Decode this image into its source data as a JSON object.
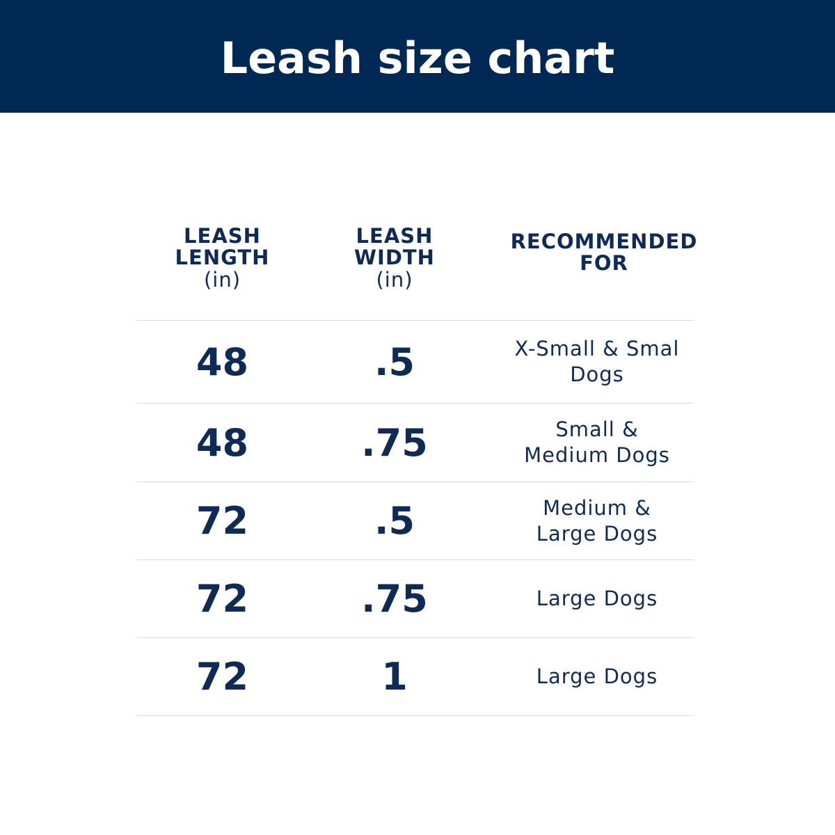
{
  "header": {
    "title": "Leash size chart"
  },
  "colors": {
    "header_bg": "#002855",
    "text": "#0e2a55",
    "divider": "#d4dbe3"
  },
  "chart_data": {
    "type": "table",
    "columns": [
      {
        "title": "LEASH LENGTH",
        "unit": "(in)"
      },
      {
        "title": "LEASH WIDTH",
        "unit": "(in)"
      },
      {
        "title": "RECOMMENDED FOR",
        "unit": ""
      }
    ],
    "rows": [
      {
        "length": "48",
        "width": ".5",
        "recommended": "X-Small & Smal Dogs"
      },
      {
        "length": "48",
        "width": ".75",
        "recommended": "Small & Medium Dogs"
      },
      {
        "length": "72",
        "width": ".5",
        "recommended": "Medium & Large Dogs"
      },
      {
        "length": "72",
        "width": ".75",
        "recommended": "Large Dogs"
      },
      {
        "length": "72",
        "width": "1",
        "recommended": "Large Dogs"
      }
    ]
  }
}
